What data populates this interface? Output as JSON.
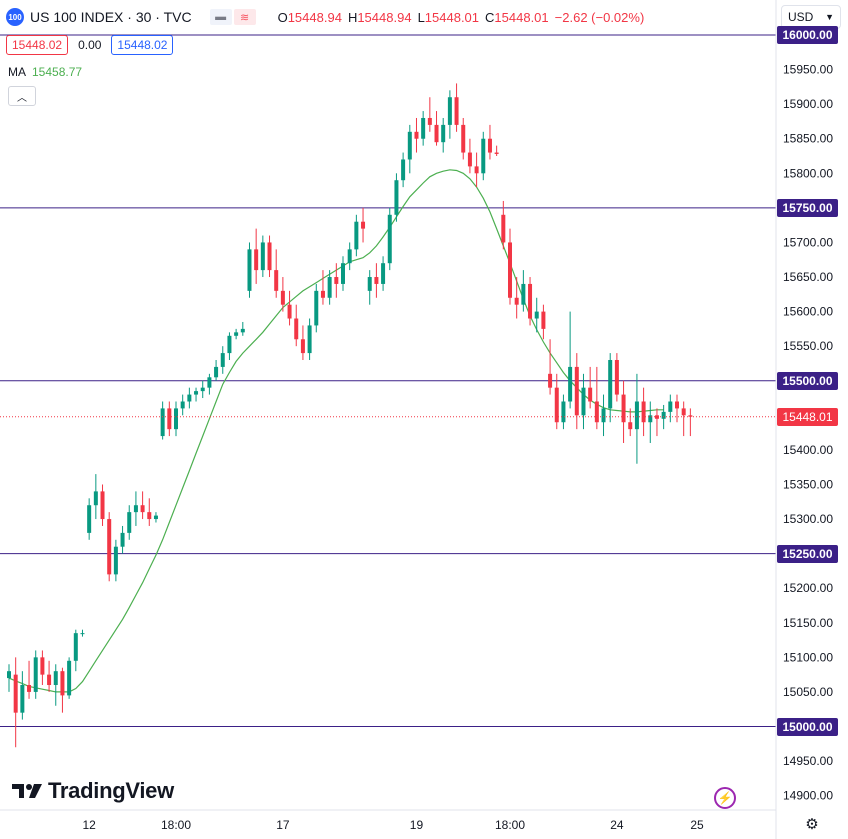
{
  "header": {
    "symbol_badge": "100",
    "title": "US 100 INDEX · 30 · TVC",
    "ohlc": [
      {
        "key": "O",
        "value": "15448.94"
      },
      {
        "key": "H",
        "value": "15448.94"
      },
      {
        "key": "L",
        "value": "15448.01"
      },
      {
        "key": "C",
        "value": "15448.01"
      }
    ],
    "change": "−2.62 (−0.02%)"
  },
  "price_boxes": {
    "sell": "15448.02",
    "spread": "0.00",
    "buy": "15448.02"
  },
  "ma": {
    "label": "MA",
    "value": "15458.77"
  },
  "currency": {
    "value": "USD"
  },
  "icons": {
    "collapse": "chevron-up-icon",
    "currency_chevron": "chevron-down-icon",
    "bolt": "lightning-icon",
    "settings": "gear-icon"
  },
  "colors": {
    "up": "#089981",
    "down": "#f23645",
    "ma": "#4caf50",
    "hline": "#3b2087",
    "accent": "#2962ff"
  },
  "logo": {
    "text": "TradingView"
  },
  "chart_data": {
    "type": "candlestick",
    "y_ticks": [
      "16000.00",
      "15950.00",
      "15900.00",
      "15850.00",
      "15800.00",
      "15750.00",
      "15700.00",
      "15650.00",
      "15600.00",
      "15550.00",
      "15500.00",
      "15450.00",
      "15400.00",
      "15350.00",
      "15300.00",
      "15250.00",
      "15200.00",
      "15150.00",
      "15100.00",
      "15050.00",
      "15000.00",
      "14950.00",
      "14900.00"
    ],
    "x_ticks": [
      {
        "label": "12",
        "bar": 12
      },
      {
        "label": "18:00",
        "bar": 25
      },
      {
        "label": "17",
        "bar": 41
      },
      {
        "label": "19",
        "bar": 61
      },
      {
        "label": "18:00",
        "bar": 75
      },
      {
        "label": "24",
        "bar": 91
      },
      {
        "label": "25",
        "bar": 103
      }
    ],
    "horizontal_lines": [
      "16000.00",
      "15750.00",
      "15500.00",
      "15250.00",
      "15000.00"
    ],
    "current_price": "15448.01",
    "ma_series": [
      15070,
      15066,
      15062,
      15058,
      15056,
      15054,
      15052,
      15050,
      15050,
      15050,
      15055,
      15065,
      15080,
      15095,
      15110,
      15125,
      15140,
      15155,
      15172,
      15190,
      15208,
      15228,
      15248,
      15270,
      15295,
      15320,
      15345,
      15370,
      15395,
      15420,
      15445,
      15470,
      15495,
      15512,
      15528,
      15540,
      15550,
      15560,
      15570,
      15582,
      15594,
      15606,
      15614,
      15622,
      15630,
      15636,
      15642,
      15648,
      15654,
      15660,
      15666,
      15672,
      15675,
      15678,
      15685,
      15695,
      15708,
      15722,
      15737,
      15752,
      15766,
      15776,
      15786,
      15795,
      15800,
      15803,
      15805,
      15804,
      15800,
      15792,
      15780,
      15764,
      15744,
      15720,
      15695,
      15670,
      15644,
      15618,
      15594,
      15574,
      15556,
      15540,
      15526,
      15512,
      15500,
      15490,
      15480,
      15472,
      15466,
      15461,
      15458,
      15457,
      15456,
      15455,
      15455,
      15456,
      15457,
      15458,
      15458
    ],
    "candles": [
      [
        15070,
        15090,
        15050,
        15080
      ],
      [
        15075,
        15100,
        14970,
        15020
      ],
      [
        15020,
        15080,
        15010,
        15060
      ],
      [
        15060,
        15095,
        15040,
        15050
      ],
      [
        15050,
        15110,
        15040,
        15100
      ],
      [
        15100,
        15110,
        15060,
        15075
      ],
      [
        15075,
        15095,
        15050,
        15060
      ],
      [
        15060,
        15090,
        15030,
        15080
      ],
      [
        15080,
        15085,
        15020,
        15045
      ],
      [
        15045,
        15100,
        15040,
        15095
      ],
      [
        15095,
        15140,
        15080,
        15135
      ],
      [
        15135,
        15140,
        15130,
        15135
      ],
      [
        15280,
        15330,
        15270,
        15320
      ],
      [
        15320,
        15365,
        15300,
        15340
      ],
      [
        15340,
        15350,
        15290,
        15300
      ],
      [
        15300,
        15310,
        15210,
        15220
      ],
      [
        15220,
        15270,
        15210,
        15260
      ],
      [
        15260,
        15290,
        15250,
        15280
      ],
      [
        15280,
        15320,
        15270,
        15310
      ],
      [
        15310,
        15340,
        15290,
        15320
      ],
      [
        15320,
        15340,
        15300,
        15310
      ],
      [
        15310,
        15330,
        15290,
        15300
      ],
      [
        15300,
        15310,
        15295,
        15305
      ],
      [
        15420,
        15470,
        15415,
        15460
      ],
      [
        15460,
        15470,
        15420,
        15430
      ],
      [
        15430,
        15470,
        15420,
        15460
      ],
      [
        15460,
        15480,
        15450,
        15470
      ],
      [
        15470,
        15490,
        15460,
        15480
      ],
      [
        15480,
        15490,
        15470,
        15485
      ],
      [
        15485,
        15500,
        15475,
        15490
      ],
      [
        15490,
        15510,
        15480,
        15505
      ],
      [
        15505,
        15530,
        15500,
        15520
      ],
      [
        15520,
        15550,
        15510,
        15540
      ],
      [
        15540,
        15570,
        15530,
        15565
      ],
      [
        15565,
        15575,
        15560,
        15570
      ],
      [
        15570,
        15585,
        15565,
        15575
      ],
      [
        15630,
        15700,
        15620,
        15690
      ],
      [
        15690,
        15720,
        15640,
        15660
      ],
      [
        15660,
        15710,
        15650,
        15700
      ],
      [
        15700,
        15710,
        15650,
        15660
      ],
      [
        15660,
        15690,
        15620,
        15630
      ],
      [
        15630,
        15650,
        15600,
        15610
      ],
      [
        15610,
        15630,
        15580,
        15590
      ],
      [
        15590,
        15610,
        15550,
        15560
      ],
      [
        15560,
        15580,
        15530,
        15540
      ],
      [
        15540,
        15590,
        15530,
        15580
      ],
      [
        15580,
        15640,
        15570,
        15630
      ],
      [
        15630,
        15660,
        15610,
        15620
      ],
      [
        15620,
        15660,
        15610,
        15650
      ],
      [
        15650,
        15670,
        15620,
        15640
      ],
      [
        15640,
        15680,
        15630,
        15670
      ],
      [
        15670,
        15700,
        15660,
        15690
      ],
      [
        15690,
        15740,
        15680,
        15730
      ],
      [
        15730,
        15750,
        15700,
        15720
      ],
      [
        15630,
        15660,
        15610,
        15650
      ],
      [
        15650,
        15670,
        15620,
        15640
      ],
      [
        15640,
        15680,
        15630,
        15670
      ],
      [
        15670,
        15750,
        15660,
        15740
      ],
      [
        15740,
        15800,
        15730,
        15790
      ],
      [
        15790,
        15830,
        15780,
        15820
      ],
      [
        15820,
        15870,
        15800,
        15860
      ],
      [
        15860,
        15880,
        15830,
        15850
      ],
      [
        15850,
        15890,
        15840,
        15880
      ],
      [
        15880,
        15910,
        15860,
        15870
      ],
      [
        15870,
        15890,
        15840,
        15845
      ],
      [
        15845,
        15880,
        15830,
        15870
      ],
      [
        15870,
        15920,
        15850,
        15910
      ],
      [
        15910,
        15930,
        15860,
        15870
      ],
      [
        15870,
        15880,
        15820,
        15830
      ],
      [
        15830,
        15850,
        15800,
        15810
      ],
      [
        15810,
        15830,
        15780,
        15800
      ],
      [
        15800,
        15860,
        15790,
        15850
      ],
      [
        15850,
        15870,
        15820,
        15830
      ],
      [
        15830,
        15840,
        15825,
        15828
      ],
      [
        15740,
        15760,
        15690,
        15700
      ],
      [
        15700,
        15720,
        15610,
        15620
      ],
      [
        15620,
        15650,
        15590,
        15610
      ],
      [
        15610,
        15660,
        15600,
        15640
      ],
      [
        15640,
        15650,
        15580,
        15590
      ],
      [
        15590,
        15620,
        15570,
        15600
      ],
      [
        15600,
        15610,
        15560,
        15575
      ],
      [
        15510,
        15560,
        15480,
        15490
      ],
      [
        15490,
        15510,
        15430,
        15440
      ],
      [
        15440,
        15480,
        15430,
        15470
      ],
      [
        15470,
        15600,
        15460,
        15520
      ],
      [
        15520,
        15540,
        15430,
        15450
      ],
      [
        15450,
        15510,
        15430,
        15490
      ],
      [
        15490,
        15520,
        15460,
        15470
      ],
      [
        15470,
        15520,
        15430,
        15440
      ],
      [
        15440,
        15480,
        15420,
        15460
      ],
      [
        15460,
        15540,
        15440,
        15530
      ],
      [
        15530,
        15540,
        15470,
        15480
      ],
      [
        15480,
        15500,
        15410,
        15440
      ],
      [
        15440,
        15460,
        15420,
        15430
      ],
      [
        15430,
        15510,
        15380,
        15470
      ],
      [
        15470,
        15490,
        15420,
        15440
      ],
      [
        15440,
        15470,
        15410,
        15450
      ],
      [
        15450,
        15460,
        15420,
        15445
      ],
      [
        15445,
        15465,
        15430,
        15455
      ],
      [
        15455,
        15480,
        15440,
        15470
      ],
      [
        15470,
        15480,
        15440,
        15460
      ],
      [
        15460,
        15470,
        15420,
        15450
      ],
      [
        15450,
        15460,
        15420,
        15448
      ]
    ]
  }
}
